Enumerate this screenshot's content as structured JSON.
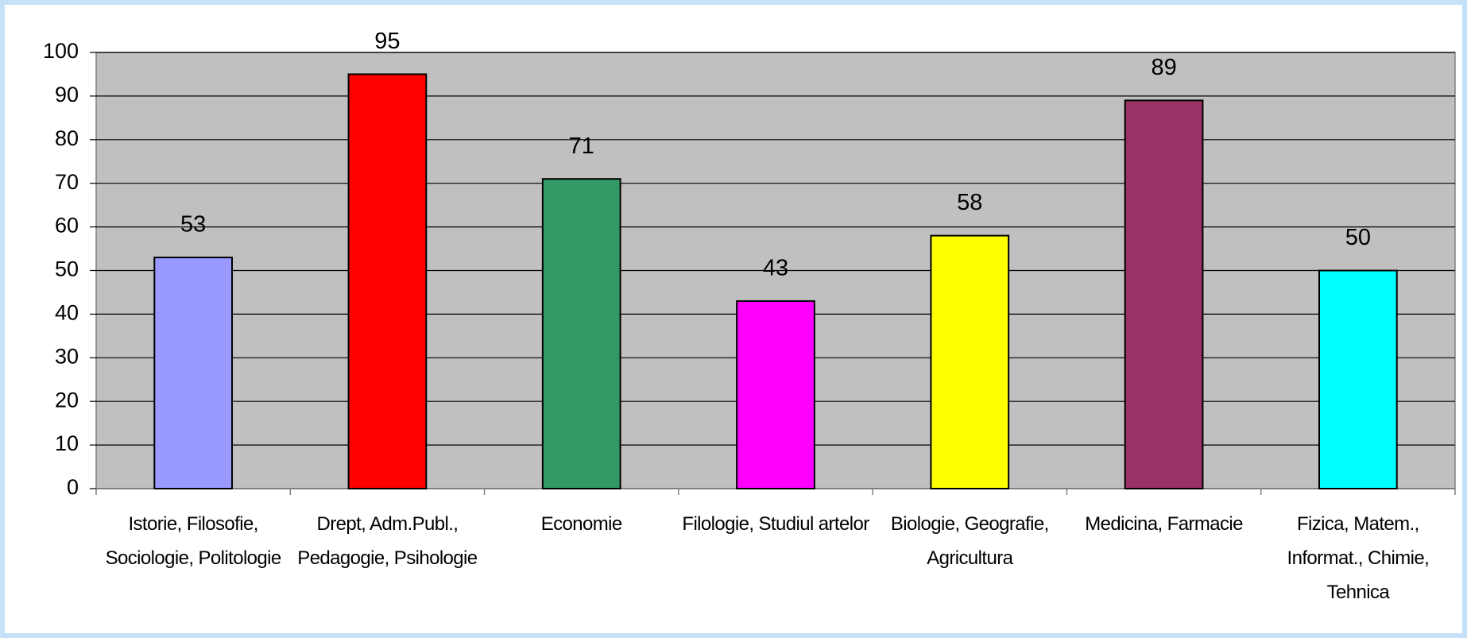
{
  "chart_data": {
    "type": "bar",
    "categories": [
      "Istorie, Filosofie, Sociologie, Politologie",
      "Drept, Adm.Publ., Pedagogie, Psihologie",
      "Economie",
      "Filologie, Studiul artelor",
      "Biologie, Geografie, Agricultura",
      "Medicina, Farmacie",
      "Fizica, Matem., Informat., Chimie, Tehnica"
    ],
    "values": [
      53,
      95,
      71,
      43,
      58,
      89,
      50
    ],
    "colors": [
      "#9999ff",
      "#ff0000",
      "#339966",
      "#ff00ff",
      "#ffff00",
      "#993366",
      "#00ffff"
    ],
    "ylim": [
      0,
      100
    ],
    "yticks": [
      0,
      10,
      20,
      30,
      40,
      50,
      60,
      70,
      80,
      90,
      100
    ],
    "grid": true
  }
}
